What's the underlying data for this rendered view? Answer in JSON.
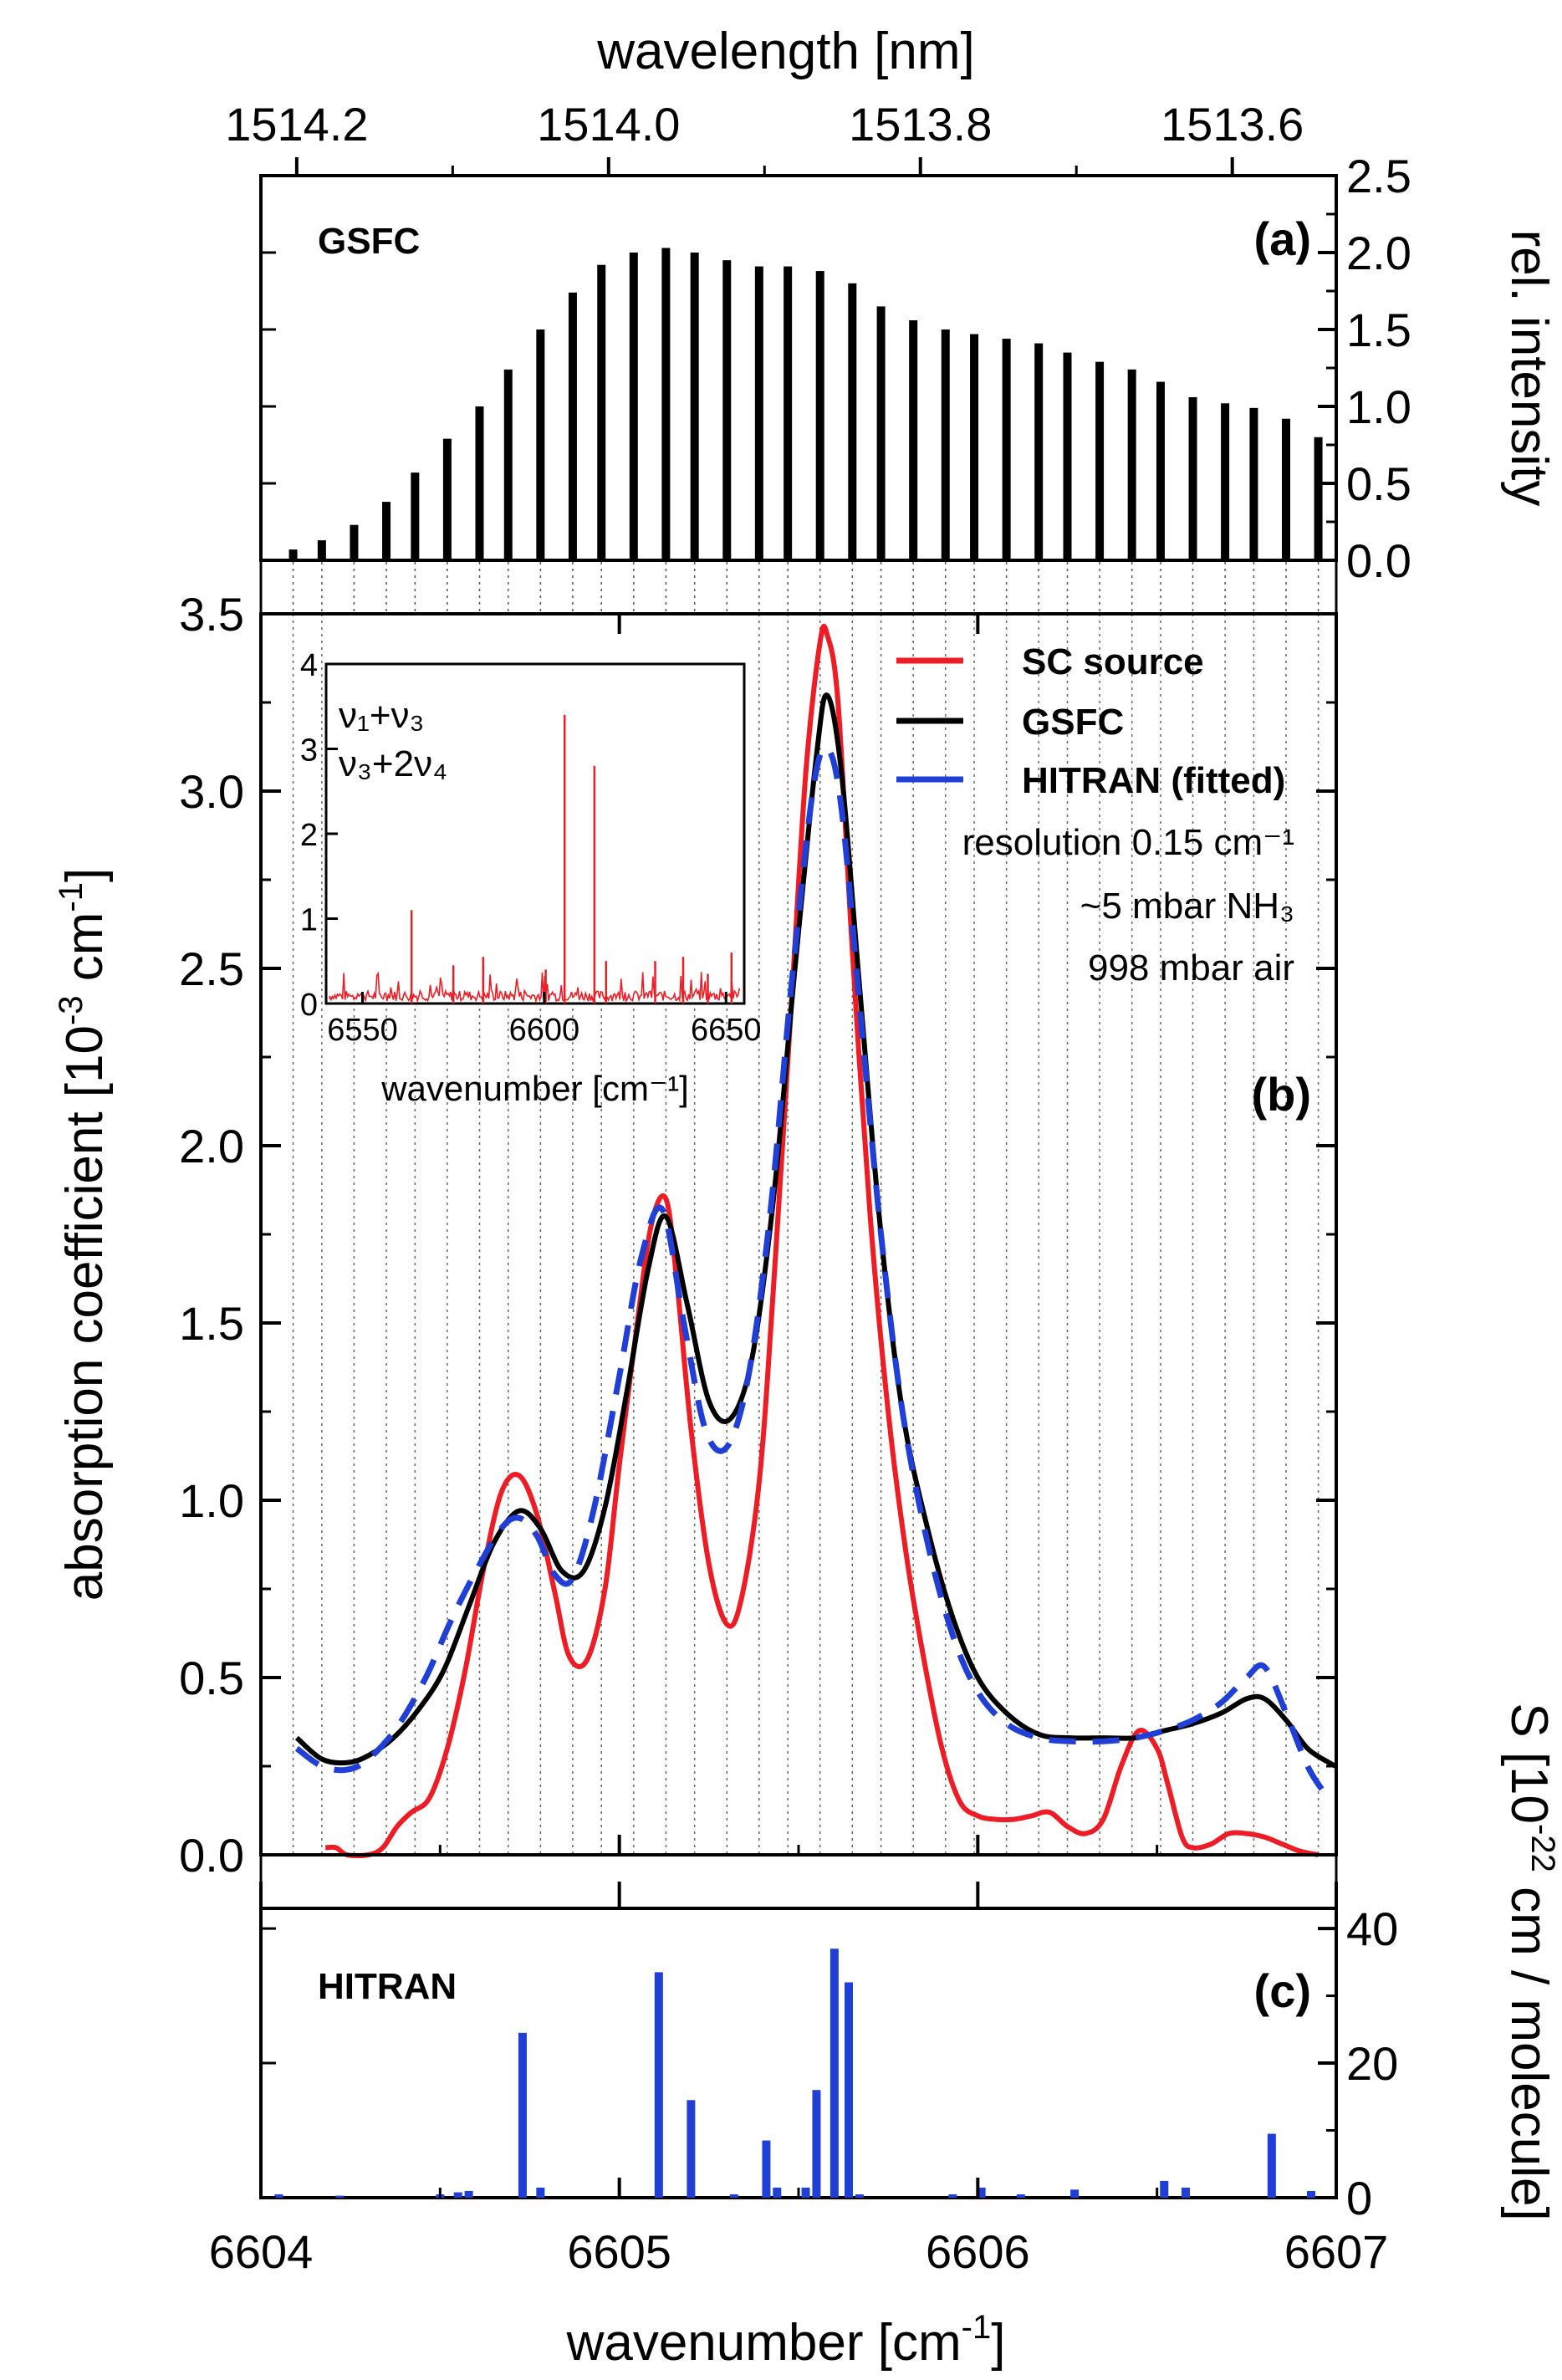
{
  "chart_data": [
    {
      "id": "a",
      "type": "bar",
      "panel_label": "(a)",
      "annotation": "GSFC",
      "xlabel_top": "wavelength [nm]",
      "top_ticks": [
        {
          "wn": 6604.1,
          "label": "1514.2"
        },
        {
          "wn": 6604.97,
          "label": "1514.0"
        },
        {
          "wn": 6605.84,
          "label": "1513.8"
        },
        {
          "wn": 6606.71,
          "label": "1513.6"
        }
      ],
      "ylabel": "rel. intensity",
      "ylim": [
        0,
        2.5
      ],
      "yticks": [
        "0.0",
        "0.5",
        "1.0",
        "1.5",
        "2.0",
        "2.5"
      ],
      "x": [
        6604.09,
        6604.17,
        6604.26,
        6604.35,
        6604.43,
        6604.52,
        6604.61,
        6604.69,
        6604.78,
        6604.87,
        6604.95,
        6605.04,
        6605.13,
        6605.21,
        6605.3,
        6605.39,
        6605.47,
        6605.56,
        6605.65,
        6605.73,
        6605.82,
        6605.91,
        6605.99,
        6606.08,
        6606.17,
        6606.25,
        6606.34,
        6606.43,
        6606.51,
        6606.6,
        6606.69,
        6606.77,
        6606.86,
        6606.95
      ],
      "values": [
        0.07,
        0.13,
        0.23,
        0.38,
        0.57,
        0.79,
        1.0,
        1.24,
        1.5,
        1.74,
        1.92,
        2.0,
        2.03,
        2.0,
        1.95,
        1.91,
        1.91,
        1.88,
        1.8,
        1.65,
        1.56,
        1.5,
        1.47,
        1.44,
        1.41,
        1.35,
        1.29,
        1.24,
        1.16,
        1.06,
        1.02,
        0.99,
        0.92,
        0.8
      ]
    },
    {
      "id": "b",
      "type": "line",
      "panel_label": "(b)",
      "ylabel": "absorption coefficient [10⁻³ cm⁻¹]",
      "ylim": [
        0,
        3.5
      ],
      "yticks": [
        "0.0",
        "0.5",
        "1.0",
        "1.5",
        "2.0",
        "2.5",
        "3.0",
        "3.5"
      ],
      "xlim": [
        6604,
        6607
      ],
      "grid": "vertical dotted lines at GSFC comb positions",
      "legend": {
        "position": "top-right",
        "entries": [
          {
            "name": "SC source",
            "color": "#ee1c24",
            "dash": false
          },
          {
            "name": "GSFC",
            "color": "#000000",
            "dash": false
          },
          {
            "name": "HITRAN (fitted)",
            "color": "#1f3fd6",
            "dash": true
          }
        ]
      },
      "notes": [
        "resolution 0.15 cm⁻¹",
        "~5 mbar NH₃",
        "998 mbar air"
      ],
      "series": [
        {
          "name": "SC source",
          "color": "#ee1c24",
          "x": [
            6604.18,
            6604.21,
            6604.24,
            6604.3,
            6604.34,
            6604.38,
            6604.42,
            6604.47,
            6604.52,
            6604.57,
            6604.62,
            6604.67,
            6604.72,
            6604.77,
            6604.82,
            6604.86,
            6604.91,
            6604.96,
            6605.0,
            6605.05,
            6605.09,
            6605.13,
            6605.16,
            6605.2,
            6605.25,
            6605.3,
            6605.34,
            6605.39,
            6605.43,
            6605.48,
            6605.52,
            6605.56,
            6605.58,
            6605.61,
            6605.65,
            6605.7,
            6605.75,
            6605.8,
            6605.85,
            6605.9,
            6605.95,
            6606.0,
            6606.05,
            6606.1,
            6606.15,
            6606.2,
            6606.25,
            6606.3,
            6606.35,
            6606.4,
            6606.45,
            6606.5,
            6606.53,
            6606.57,
            6606.6,
            6606.65,
            6606.7,
            6606.75,
            6606.8,
            6606.85,
            6606.9,
            6606.95
          ],
          "y": [
            0.02,
            0.02,
            0.0,
            0.0,
            0.02,
            0.08,
            0.12,
            0.16,
            0.3,
            0.52,
            0.8,
            1.02,
            1.07,
            0.96,
            0.74,
            0.56,
            0.55,
            0.75,
            1.1,
            1.5,
            1.78,
            1.85,
            1.62,
            1.2,
            0.82,
            0.65,
            0.72,
            1.05,
            1.6,
            2.4,
            3.05,
            3.42,
            3.44,
            3.25,
            2.55,
            1.8,
            1.25,
            0.85,
            0.55,
            0.3,
            0.15,
            0.11,
            0.1,
            0.1,
            0.11,
            0.12,
            0.08,
            0.06,
            0.1,
            0.25,
            0.35,
            0.3,
            0.2,
            0.05,
            0.02,
            0.03,
            0.06,
            0.06,
            0.05,
            0.03,
            0.01,
            0.0
          ]
        },
        {
          "name": "GSFC",
          "color": "#000000",
          "x": [
            6604.1,
            6604.17,
            6604.24,
            6604.3,
            6604.37,
            6604.44,
            6604.51,
            6604.58,
            6604.65,
            6604.72,
            6604.78,
            6604.84,
            6604.9,
            6604.96,
            6605.02,
            6605.08,
            6605.13,
            6605.19,
            6605.25,
            6605.31,
            6605.37,
            6605.43,
            6605.49,
            6605.55,
            6605.58,
            6605.62,
            6605.67,
            6605.73,
            6605.79,
            6605.86,
            6605.93,
            6606.0,
            6606.08,
            6606.17,
            6606.26,
            6606.35,
            6606.44,
            6606.52,
            6606.6,
            6606.68,
            6606.75,
            6606.8,
            6606.86,
            6606.92,
            6606.98,
            6607.0
          ],
          "y": [
            0.33,
            0.27,
            0.26,
            0.28,
            0.33,
            0.41,
            0.52,
            0.7,
            0.88,
            0.97,
            0.92,
            0.8,
            0.8,
            0.98,
            1.3,
            1.65,
            1.8,
            1.55,
            1.28,
            1.23,
            1.4,
            1.85,
            2.5,
            3.1,
            3.27,
            3.05,
            2.45,
            1.75,
            1.25,
            0.92,
            0.67,
            0.5,
            0.4,
            0.34,
            0.33,
            0.33,
            0.33,
            0.35,
            0.37,
            0.4,
            0.44,
            0.44,
            0.38,
            0.3,
            0.26,
            0.25
          ]
        },
        {
          "name": "HITRAN (fitted)",
          "color": "#1f3fd6",
          "x": [
            6604.1,
            6604.17,
            6604.24,
            6604.3,
            6604.38,
            6604.46,
            6604.53,
            6604.6,
            6604.67,
            6604.72,
            6604.77,
            6604.82,
            6604.87,
            6604.93,
            6605.0,
            6605.06,
            6605.12,
            6605.18,
            6605.24,
            6605.3,
            6605.36,
            6605.42,
            6605.48,
            6605.54,
            6605.58,
            6605.62,
            6605.67,
            6605.73,
            6605.79,
            6605.86,
            6605.93,
            6606.0,
            6606.08,
            6606.17,
            6606.26,
            6606.35,
            6606.44,
            6606.52,
            6606.6,
            6606.68,
            6606.75,
            6606.8,
            6606.86,
            6606.92,
            6606.97
          ],
          "y": [
            0.3,
            0.25,
            0.24,
            0.27,
            0.36,
            0.5,
            0.66,
            0.8,
            0.92,
            0.95,
            0.9,
            0.79,
            0.78,
            0.98,
            1.35,
            1.68,
            1.82,
            1.5,
            1.2,
            1.15,
            1.35,
            1.8,
            2.45,
            3.0,
            3.12,
            2.95,
            2.4,
            1.75,
            1.25,
            0.88,
            0.62,
            0.46,
            0.37,
            0.33,
            0.32,
            0.32,
            0.33,
            0.35,
            0.38,
            0.43,
            0.5,
            0.53,
            0.4,
            0.25,
            0.17
          ]
        }
      ]
    },
    {
      "id": "inset",
      "type": "line",
      "xlabel": "wavenumber [cm⁻¹]",
      "xlim": [
        6540,
        6655
      ],
      "xticks": [
        "6550",
        "6600",
        "6650"
      ],
      "ylim": [
        0,
        4
      ],
      "yticks": [
        "0",
        "1",
        "2",
        "3",
        "4"
      ],
      "annotation_lines": [
        "ν₁+ν₃",
        "ν₃+2ν₄"
      ],
      "color": "#ee1c24",
      "peaks": [
        {
          "x": 6563.5,
          "y": 1.1
        },
        {
          "x": 6605.6,
          "y": 3.4
        },
        {
          "x": 6613.8,
          "y": 2.8
        },
        {
          "x": 6575.0,
          "y": 0.45
        },
        {
          "x": 6583.2,
          "y": 0.55
        },
        {
          "x": 6600.4,
          "y": 0.4
        },
        {
          "x": 6617.0,
          "y": 0.5
        },
        {
          "x": 6630.5,
          "y": 0.5
        },
        {
          "x": 6638.2,
          "y": 0.55
        },
        {
          "x": 6645.0,
          "y": 0.35
        },
        {
          "x": 6651.5,
          "y": 0.6
        }
      ]
    },
    {
      "id": "c",
      "type": "bar",
      "panel_label": "(c)",
      "annotation": "HITRAN",
      "ylabel": "S [10⁻²² cm / molecule]",
      "ylim": [
        0,
        40
      ],
      "yticks": [
        "0",
        "20",
        "40"
      ],
      "xlabel": "wavenumber  [cm⁻¹]",
      "xticks": [
        "6604",
        "6605",
        "6606",
        "6607"
      ],
      "color": "#1f3fd6",
      "x": [
        6604.05,
        6604.22,
        6604.5,
        6604.55,
        6604.58,
        6604.73,
        6604.78,
        6605.11,
        6605.2,
        6605.32,
        6605.41,
        6605.44,
        6605.52,
        6605.55,
        6605.6,
        6605.64,
        6605.67,
        6605.93,
        6606.01,
        6606.12,
        6606.27,
        6606.52,
        6606.58,
        6606.82,
        6606.93
      ],
      "values": [
        0.5,
        0.3,
        0.5,
        0.8,
        1.0,
        24.5,
        1.5,
        33.5,
        14.5,
        0.5,
        8.5,
        1.5,
        1.5,
        16.0,
        37.0,
        32.0,
        0.5,
        0.5,
        1.5,
        0.5,
        1.2,
        2.5,
        1.5,
        9.5,
        1.0
      ]
    }
  ]
}
